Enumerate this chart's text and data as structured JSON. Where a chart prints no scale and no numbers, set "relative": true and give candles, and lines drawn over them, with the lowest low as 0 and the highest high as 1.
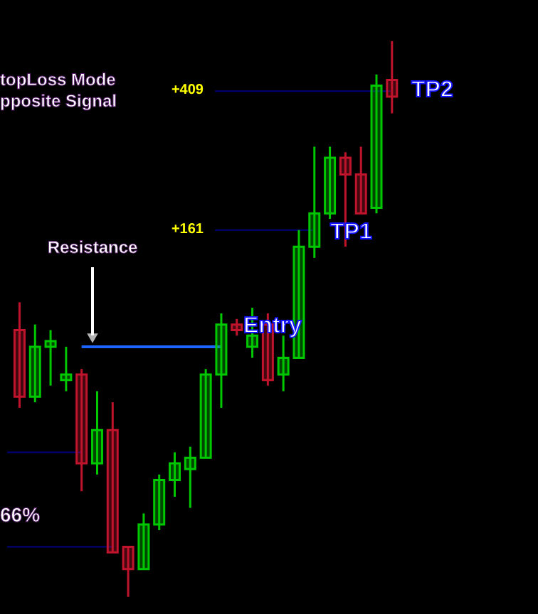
{
  "chart_data": {
    "type": "candlestick",
    "relative": true,
    "categories": [
      null,
      null,
      null,
      null,
      null,
      null,
      null,
      null,
      null,
      null,
      null,
      null,
      null,
      null,
      null,
      null,
      null,
      null,
      null,
      null,
      null,
      null,
      null,
      null,
      null
    ],
    "ohlc": [
      [
        0.48,
        0.53,
        0.34,
        0.36
      ],
      [
        0.36,
        0.49,
        0.35,
        0.45
      ],
      [
        0.45,
        0.48,
        0.38,
        0.46
      ],
      [
        0.39,
        0.45,
        0.37,
        0.4
      ],
      [
        0.4,
        0.41,
        0.19,
        0.24
      ],
      [
        0.24,
        0.37,
        0.22,
        0.3
      ],
      [
        0.3,
        0.35,
        0.08,
        0.08
      ],
      [
        0.09,
        0.09,
        0,
        0.05
      ],
      [
        0.05,
        0.15,
        0.05,
        0.13
      ],
      [
        0.13,
        0.22,
        0.12,
        0.21
      ],
      [
        0.21,
        0.26,
        0.18,
        0.24
      ],
      [
        0.23,
        0.27,
        0.16,
        0.25
      ],
      [
        0.25,
        0.41,
        0.25,
        0.4
      ],
      [
        0.4,
        0.51,
        0.34,
        0.49
      ],
      [
        0.49,
        0.5,
        0.47,
        0.48
      ],
      [
        0.45,
        0.52,
        0.43,
        0.47
      ],
      [
        0.49,
        0.51,
        0.38,
        0.39
      ],
      [
        0.4,
        0.47,
        0.37,
        0.43
      ],
      [
        0.43,
        0.66,
        0.43,
        0.63
      ],
      [
        0.63,
        0.81,
        0.61,
        0.69
      ],
      [
        0.69,
        0.81,
        0.68,
        0.79
      ],
      [
        0.79,
        0.8,
        0.63,
        0.76
      ],
      [
        0.76,
        0.81,
        0.69,
        0.69
      ],
      [
        0.7,
        0.94,
        0.69,
        0.92
      ],
      [
        0.93,
        1,
        0.87,
        0.9
      ]
    ],
    "ref_lines": [
      {
        "axis": "y",
        "value": 0.91,
        "color": "#000080"
      },
      {
        "axis": "y",
        "value": 0.66,
        "color": "#000080"
      },
      {
        "axis": "y",
        "value": 0.45,
        "label": "Resistance",
        "color": "#1e64ff"
      },
      {
        "axis": "y",
        "value": 0.26,
        "color": "#000080"
      },
      {
        "axis": "y",
        "value": 0.09,
        "color": "#000080"
      }
    ],
    "annotations": [
      "topLoss Mode",
      "pposite Signal",
      "66%",
      "+409",
      "+161",
      "TP2",
      "TP1",
      "Entry"
    ]
  }
}
